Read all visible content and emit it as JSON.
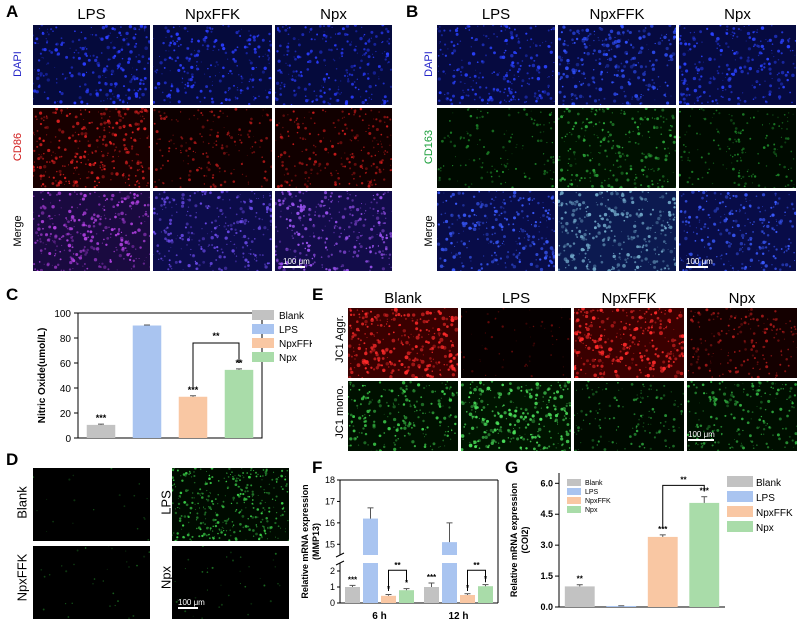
{
  "panels": {
    "A": {
      "label": "A",
      "columns": [
        "LPS",
        "NpxFFK",
        "Npx"
      ],
      "rows": [
        "DAPI",
        "CD86",
        "Merge"
      ],
      "row_colors": [
        "#2424c8",
        "#d11f1f",
        "#000000"
      ],
      "scale_bar": "100 μm"
    },
    "B": {
      "label": "B",
      "columns": [
        "LPS",
        "NpxFFK",
        "Npx"
      ],
      "rows": [
        "DAPI",
        "CD163",
        "Merge"
      ],
      "row_colors": [
        "#2424c8",
        "#1a9e3a",
        "#000000"
      ],
      "scale_bar": "100 μm"
    },
    "C": {
      "label": "C"
    },
    "D": {
      "label": "D",
      "names": [
        "Blank",
        "LPS",
        "NpxFFK",
        "Npx"
      ],
      "scale_bar": "100 μm"
    },
    "E": {
      "label": "E",
      "columns": [
        "Blank",
        "LPS",
        "NpxFFK",
        "Npx"
      ],
      "rows": [
        "JC1 Aggr.",
        "JC1 mono."
      ],
      "scale_bar": "100 μm"
    },
    "F": {
      "label": "F"
    },
    "G": {
      "label": "G"
    }
  },
  "colors": {
    "Blank": "#c2c2c2",
    "LPS": "#a9c4f0",
    "NpxFFK": "#f9c7a3",
    "Npx": "#a9dca9"
  },
  "chart_data": [
    {
      "id": "C",
      "type": "bar",
      "categories": [
        "Blank",
        "LPS",
        "NpxFFK",
        "Npx"
      ],
      "values": [
        10.5,
        90,
        33,
        54.5
      ],
      "errors": [
        0.6,
        0.4,
        0.8,
        0.8
      ],
      "ylabel": "Nitric Oxide(umol/L)",
      "ylim": [
        0,
        100
      ],
      "yticks": [
        "0",
        "20",
        "40",
        "60",
        "80",
        "100"
      ],
      "legend": [
        "Blank",
        "LPS",
        "NpxFFK",
        "Npx"
      ],
      "annotations": [
        "***",
        "",
        "***",
        "**"
      ],
      "bracket": {
        "from": "NpxFFK",
        "to": "Npx",
        "label": "**"
      }
    },
    {
      "id": "F",
      "type": "bar",
      "categories": [
        "6 h",
        "12 h"
      ],
      "series": [
        {
          "name": "Blank",
          "values": [
            1.0,
            1.0
          ],
          "errors": [
            0.1,
            0.25
          ]
        },
        {
          "name": "LPS",
          "values": [
            16.2,
            15.1
          ],
          "errors": [
            0.5,
            0.9
          ]
        },
        {
          "name": "NpxFFK",
          "values": [
            0.45,
            0.5
          ],
          "errors": [
            0.08,
            0.08
          ]
        },
        {
          "name": "Npx",
          "values": [
            0.8,
            1.05
          ],
          "errors": [
            0.1,
            0.1
          ]
        }
      ],
      "ylabel": "Relative mRNA expression (MMP13)",
      "yticks_upper": [
        "15",
        "16",
        "17",
        "18"
      ],
      "yticks_lower": [
        "0",
        "1",
        "2"
      ],
      "axis_break": true,
      "annotations": [
        [
          "***",
          "",
          "*",
          "*"
        ],
        [
          "***",
          "",
          "*",
          "*"
        ]
      ],
      "brackets": [
        {
          "group": "6 h",
          "label": "**"
        },
        {
          "group": "12 h",
          "label": "**"
        }
      ]
    },
    {
      "id": "G",
      "type": "bar",
      "categories": [
        "Blank",
        "LPS",
        "NpxFFK",
        "Npx"
      ],
      "values": [
        1.0,
        0.05,
        3.4,
        5.05
      ],
      "errors": [
        0.08,
        0.01,
        0.1,
        0.3
      ],
      "ylabel": "Relative mRNA expression (COl2)",
      "ylim": [
        0,
        6.5
      ],
      "yticks": [
        "0.0",
        "1.5",
        "3.0",
        "4.5",
        "6.0"
      ],
      "legend": [
        "Blank",
        "LPS",
        "NpxFFK",
        "Npx"
      ],
      "annotations": [
        "**",
        "",
        "***",
        "***"
      ],
      "bracket": {
        "from": "NpxFFK",
        "to": "Npx",
        "label": "**"
      }
    }
  ]
}
